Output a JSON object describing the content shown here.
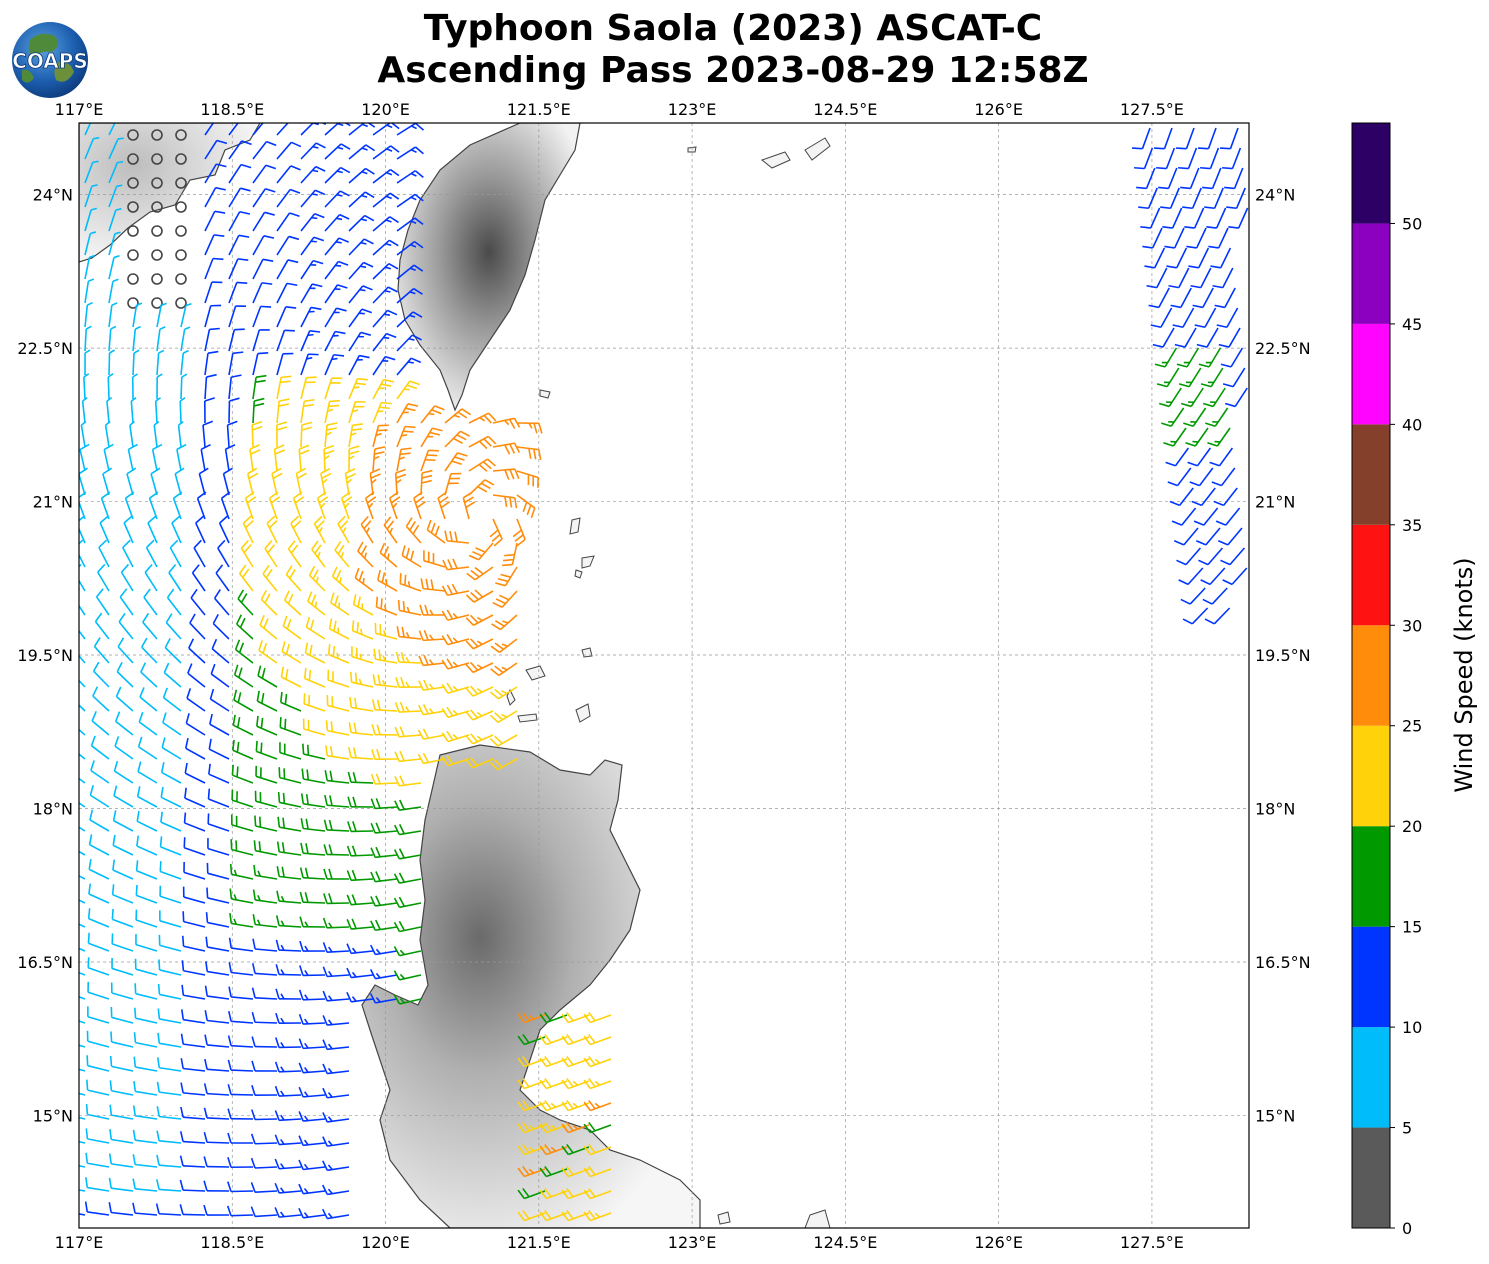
{
  "title": {
    "line1": "Typhoon Saola (2023) ASCAT-C",
    "line2": "Ascending Pass 2023-08-29 12:58Z"
  },
  "logo": {
    "text": "COAPS"
  },
  "map": {
    "lon_labels": [
      "117°E",
      "118.5°E",
      "120°E",
      "121.5°E",
      "123°E",
      "124.5°E",
      "126°E",
      "127.5°E"
    ],
    "lat_labels": [
      "24°N",
      "22.5°N",
      "21°N",
      "19.5°N",
      "18°N",
      "16.5°N",
      "15°N"
    ],
    "lon_values": [
      117,
      118.5,
      120,
      121.5,
      123,
      124.5,
      126,
      127.5
    ],
    "lat_values": [
      24,
      22.5,
      21,
      19.5,
      18,
      16.5,
      15
    ],
    "extent": {
      "lon_min": 117,
      "lon_max": 128.45,
      "lat_min": 13.9,
      "lat_max": 24.7
    },
    "gridlines": true
  },
  "colorbar": {
    "label": "Wind Speed (knots)",
    "ticks": [
      "0",
      "5",
      "10",
      "15",
      "20",
      "25",
      "30",
      "35",
      "40",
      "45",
      "50"
    ],
    "bins": [
      {
        "min": 0,
        "max": 5,
        "color": "#5a5a5a"
      },
      {
        "min": 5,
        "max": 10,
        "color": "#00bcfa"
      },
      {
        "min": 10,
        "max": 15,
        "color": "#0035ff"
      },
      {
        "min": 15,
        "max": 20,
        "color": "#009900"
      },
      {
        "min": 20,
        "max": 25,
        "color": "#ffd20a"
      },
      {
        "min": 25,
        "max": 30,
        "color": "#ff8c0a"
      },
      {
        "min": 30,
        "max": 35,
        "color": "#ff1212"
      },
      {
        "min": 35,
        "max": 40,
        "color": "#84402a"
      },
      {
        "min": 40,
        "max": 45,
        "color": "#ff05ff"
      },
      {
        "min": 45,
        "max": 50,
        "color": "#8c00bf"
      },
      {
        "min": 50,
        "max": 55,
        "color": "#2d0066"
      }
    ]
  },
  "icons": {
    "logo": "globe-icon",
    "barbs": "wind-barb-icon"
  }
}
